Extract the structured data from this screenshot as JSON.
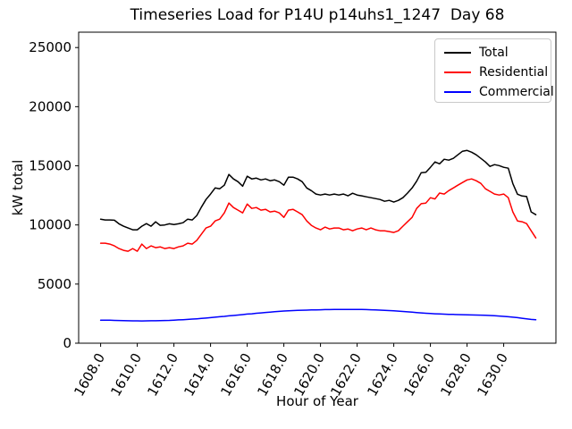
{
  "chart_data": {
    "type": "line",
    "title": "Timeseries Load for P14U p14uhs1_1247  Day 68",
    "xlabel": "Hour of Year",
    "ylabel": "kW total",
    "grid": false,
    "legend_position": "upper right",
    "xlim": [
      1606.8,
      1632.85
    ],
    "ylim": [
      0,
      26300
    ],
    "yticks": [
      0,
      5000,
      10000,
      15000,
      20000,
      25000
    ],
    "xticks": [
      1608,
      1610,
      1612,
      1614,
      1616,
      1618,
      1620,
      1622,
      1624,
      1626,
      1628,
      1630
    ],
    "xtick_labels": [
      "1608.0",
      "1610.0",
      "1612.0",
      "1614.0",
      "1616.0",
      "1618.0",
      "1620.0",
      "1622.0",
      "1624.0",
      "1626.0",
      "1628.0",
      "1630.0"
    ],
    "x_start": 1608.0,
    "x_step": 0.25,
    "x": [
      1608.0,
      1608.25,
      1608.5,
      1608.75,
      1609.0,
      1609.25,
      1609.5,
      1609.75,
      1610.0,
      1610.25,
      1610.5,
      1610.75,
      1611.0,
      1611.25,
      1611.5,
      1611.75,
      1612.0,
      1612.25,
      1612.5,
      1612.75,
      1613.0,
      1613.25,
      1613.5,
      1613.75,
      1614.0,
      1614.25,
      1614.5,
      1614.75,
      1615.0,
      1615.25,
      1615.5,
      1615.75,
      1616.0,
      1616.25,
      1616.5,
      1616.75,
      1617.0,
      1617.25,
      1617.5,
      1617.75,
      1618.0,
      1618.25,
      1618.5,
      1618.75,
      1619.0,
      1619.25,
      1619.5,
      1619.75,
      1620.0,
      1620.25,
      1620.5,
      1620.75,
      1621.0,
      1621.25,
      1621.5,
      1621.75,
      1622.0,
      1622.25,
      1622.5,
      1622.75,
      1623.0,
      1623.25,
      1623.5,
      1623.75,
      1624.0,
      1624.25,
      1624.5,
      1624.75,
      1625.0,
      1625.25,
      1625.5,
      1625.75,
      1626.0,
      1626.25,
      1626.5,
      1626.75,
      1627.0,
      1627.25,
      1627.5,
      1627.75,
      1628.0,
      1628.25,
      1628.5,
      1628.75,
      1629.0,
      1629.25,
      1629.5,
      1629.75,
      1630.0,
      1630.25,
      1630.5,
      1630.75,
      1631.0,
      1631.25,
      1631.5,
      1631.75
    ],
    "series": [
      {
        "name": "Total",
        "color": "#000000",
        "values": [
          10490,
          10420,
          10420,
          10400,
          10100,
          9890,
          9740,
          9590,
          9590,
          9890,
          10110,
          9890,
          10260,
          9965,
          10000,
          10100,
          10040,
          10100,
          10190,
          10490,
          10420,
          10800,
          11500,
          12150,
          12610,
          13130,
          13060,
          13360,
          14270,
          13890,
          13660,
          13280,
          14120,
          13890,
          13960,
          13810,
          13890,
          13740,
          13810,
          13660,
          13360,
          14040,
          14040,
          13890,
          13660,
          13130,
          12900,
          12610,
          12530,
          12610,
          12530,
          12610,
          12530,
          12610,
          12460,
          12680,
          12530,
          12460,
          12380,
          12300,
          12230,
          12150,
          12000,
          12080,
          11930,
          12080,
          12300,
          12700,
          13130,
          13700,
          14420,
          14450,
          14870,
          15325,
          15170,
          15550,
          15480,
          15630,
          15930,
          16230,
          16300,
          16150,
          15930,
          15630,
          15325,
          14950,
          15100,
          15020,
          14870,
          14800,
          13500,
          12600,
          12450,
          12400,
          11100,
          10870
        ]
      },
      {
        "name": "Residential",
        "color": "#ff0000",
        "values": [
          8460,
          8460,
          8380,
          8230,
          8000,
          7850,
          7780,
          8000,
          7780,
          8380,
          8000,
          8230,
          8080,
          8150,
          8000,
          8080,
          8000,
          8150,
          8230,
          8460,
          8380,
          8700,
          9210,
          9740,
          9890,
          10340,
          10490,
          11020,
          11850,
          11470,
          11250,
          11020,
          11770,
          11400,
          11470,
          11250,
          11320,
          11100,
          11170,
          11020,
          10640,
          11250,
          11320,
          11100,
          10870,
          10340,
          9965,
          9740,
          9590,
          9815,
          9660,
          9740,
          9740,
          9590,
          9660,
          9510,
          9660,
          9740,
          9590,
          9740,
          9590,
          9510,
          9510,
          9440,
          9360,
          9510,
          9890,
          10270,
          10640,
          11400,
          11800,
          11850,
          12300,
          12200,
          12700,
          12610,
          12900,
          13130,
          13360,
          13590,
          13810,
          13890,
          13740,
          13510,
          13060,
          12840,
          12610,
          12530,
          12610,
          12300,
          11100,
          10340,
          10270,
          10110,
          9510,
          8900
        ]
      },
      {
        "name": "Commercial",
        "color": "#0000ff",
        "values": [
          1950,
          1950,
          1940,
          1930,
          1920,
          1910,
          1900,
          1890,
          1890,
          1885,
          1890,
          1895,
          1900,
          1910,
          1920,
          1930,
          1950,
          1970,
          1990,
          2010,
          2040,
          2060,
          2090,
          2120,
          2160,
          2200,
          2240,
          2270,
          2310,
          2340,
          2380,
          2420,
          2460,
          2490,
          2530,
          2560,
          2600,
          2630,
          2660,
          2690,
          2720,
          2740,
          2760,
          2780,
          2790,
          2800,
          2810,
          2820,
          2830,
          2840,
          2845,
          2850,
          2855,
          2860,
          2860,
          2860,
          2855,
          2850,
          2840,
          2830,
          2820,
          2800,
          2780,
          2760,
          2740,
          2710,
          2680,
          2650,
          2620,
          2590,
          2560,
          2530,
          2510,
          2490,
          2470,
          2455,
          2440,
          2430,
          2420,
          2410,
          2400,
          2390,
          2380,
          2370,
          2355,
          2340,
          2320,
          2300,
          2270,
          2240,
          2200,
          2160,
          2110,
          2060,
          2010,
          1980
        ]
      }
    ]
  },
  "legend": {
    "items": [
      {
        "label": "Total",
        "color": "#000000"
      },
      {
        "label": "Residential",
        "color": "#ff0000"
      },
      {
        "label": "Commercial",
        "color": "#0000ff"
      }
    ]
  }
}
